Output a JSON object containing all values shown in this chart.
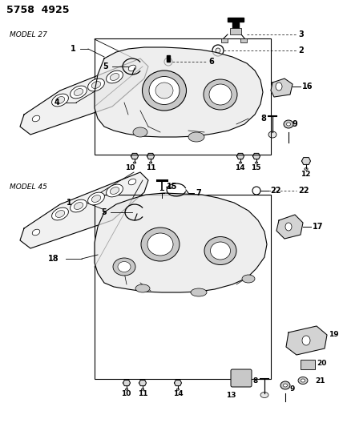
{
  "bg_color": "#ffffff",
  "title": "5758  4925",
  "model1": "MODEL 27",
  "model2": "MODEL 45",
  "gray_light": "#e8e8e8",
  "gray_mid": "#c8c8c8",
  "gray_dark": "#a0a0a0"
}
